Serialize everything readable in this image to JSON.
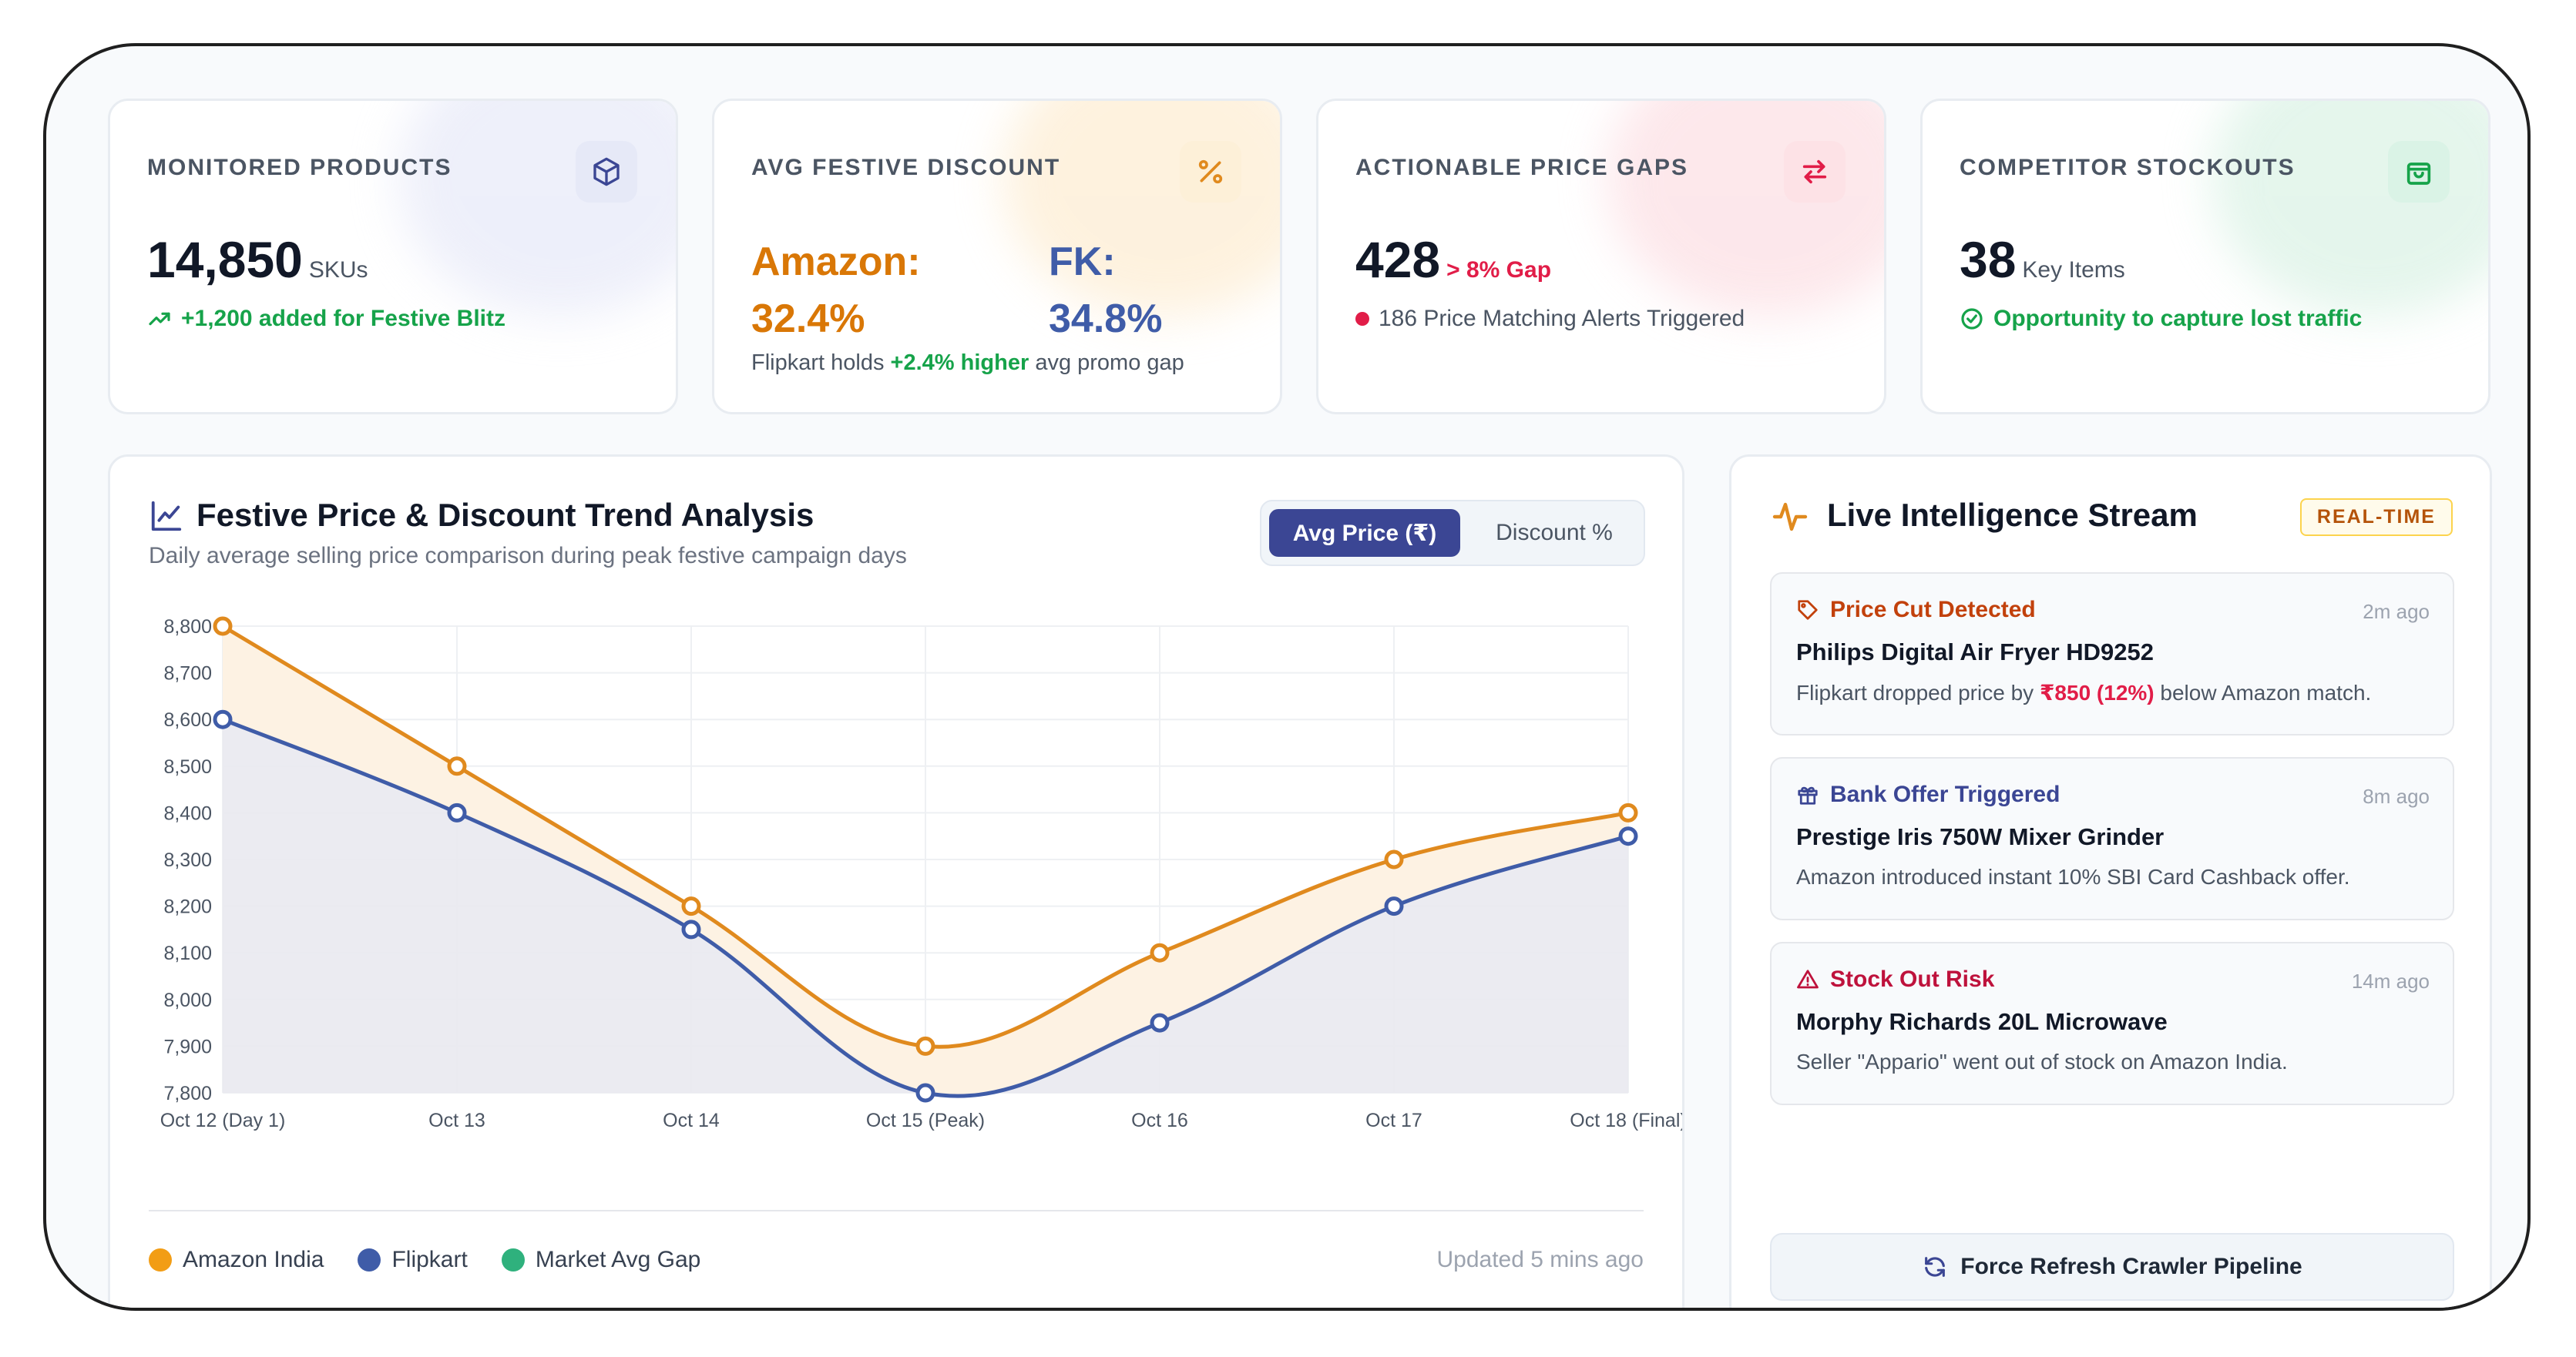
{
  "kpis": {
    "monitored": {
      "label": "MONITORED PRODUCTS",
      "value": "14,850",
      "unit": "SKUs",
      "sub": "+1,200 added for Festive Blitz",
      "icon": "box-icon"
    },
    "discount": {
      "label": "AVG FESTIVE DISCOUNT",
      "amazon_label": "Amazon:",
      "amazon_value": "32.4%",
      "fk_label": "FK:",
      "fk_value": "34.8%",
      "note_prefix": "Flipkart holds",
      "note_highlight": "+2.4% higher",
      "note_suffix": "avg promo gap",
      "icon": "percent-icon"
    },
    "gaps": {
      "label": "ACTIONABLE PRICE GAPS",
      "value": "428",
      "unit": "> 8% Gap",
      "sub": "186 Price Matching Alerts Triggered",
      "icon": "swap-arrows-icon"
    },
    "stockouts": {
      "label": "COMPETITOR STOCKOUTS",
      "value": "38",
      "unit": "Key Items",
      "sub": "Opportunity to capture lost traffic",
      "icon": "shopping-bag-icon"
    }
  },
  "chart_card": {
    "title": "Festive Price & Discount Trend Analysis",
    "subtitle": "Daily average selling price comparison during peak festive campaign days",
    "toggle_active": "Avg Price (₹)",
    "toggle_inactive": "Discount %",
    "updated": "Updated 5 mins ago"
  },
  "chart_data": {
    "type": "line",
    "categories": [
      "Oct 12 (Day 1)",
      "Oct 13",
      "Oct 14",
      "Oct 15 (Peak)",
      "Oct 16",
      "Oct 17",
      "Oct 18 (Final)"
    ],
    "y_ticks": [
      "8,800",
      "8,700",
      "8,600",
      "8,500",
      "8,400",
      "8,300",
      "8,200",
      "8,100",
      "8,000",
      "7,900",
      "7,800"
    ],
    "ylim": [
      7800,
      8800
    ],
    "grid": true,
    "series": [
      {
        "name": "Amazon India",
        "color": "#e08a1e",
        "values": [
          8800,
          8500,
          8200,
          7900,
          8100,
          8300,
          8400
        ]
      },
      {
        "name": "Flipkart",
        "color": "#3f5ca8",
        "values": [
          8600,
          8400,
          8150,
          7800,
          7950,
          8200,
          8350
        ]
      }
    ],
    "legend": [
      "Amazon India",
      "Flipkart",
      "Market Avg Gap"
    ],
    "legend_colors": [
      "#f29d15",
      "#3f5ca8",
      "#2fb17d"
    ],
    "legend_position": "bottom-left"
  },
  "stream": {
    "title": "Live Intelligence Stream",
    "badge": "REAL-TIME",
    "alerts": [
      {
        "type": "Price Cut Detected",
        "ago": "2m ago",
        "product": "Philips Digital Air Fryer HD9252",
        "msg_prefix": "Flipkart dropped price by",
        "msg_highlight": "₹850 (12%)",
        "msg_suffix": "below Amazon match.",
        "color": "#c2410c",
        "icon": "tag-icon"
      },
      {
        "type": "Bank Offer Triggered",
        "ago": "8m ago",
        "product": "Prestige Iris 750W Mixer Grinder",
        "msg": "Amazon introduced instant 10% SBI Card Cashback offer.",
        "color": "#3b4694",
        "icon": "gift-icon"
      },
      {
        "type": "Stock Out Risk",
        "ago": "14m ago",
        "product": "Morphy Richards 20L Microwave",
        "msg": "Seller \"Appario\" went out of stock on Amazon India.",
        "color": "#be123c",
        "icon": "warning-icon"
      }
    ],
    "refresh_label": "Force Refresh Crawler Pipeline"
  }
}
